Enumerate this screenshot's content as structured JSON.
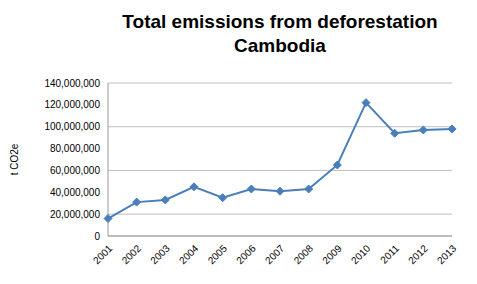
{
  "chart_data": {
    "type": "line",
    "title": "Total emissions from deforestation\nCambodia",
    "y_label": "t CO2e",
    "categories": [
      "2001",
      "2002",
      "2003",
      "2004",
      "2005",
      "2006",
      "2007",
      "2008",
      "2009",
      "2010",
      "2011",
      "2012",
      "2013"
    ],
    "values": [
      16000000,
      31000000,
      33000000,
      45000000,
      35000000,
      43000000,
      41000000,
      43000000,
      65000000,
      122000000,
      94000000,
      97000000,
      98000000
    ],
    "color": "#4a7ebb",
    "marker": "diamond",
    "ylim": [
      0,
      140000000
    ],
    "yticks": [
      0,
      {
        "value": 20000000,
        "label": "20,000,000"
      },
      {
        "value": 40000000,
        "label": "40,000,000"
      },
      {
        "value": 60000000,
        "label": "60,000,000"
      },
      {
        "value": 80000000,
        "label": "80,000,000"
      },
      {
        "value": 100000000,
        "label": "100,000,000"
      },
      {
        "value": 120000000,
        "label": "120,000,000"
      },
      {
        "value": 140000000,
        "label": "140,000,000"
      }
    ],
    "grid": true
  }
}
